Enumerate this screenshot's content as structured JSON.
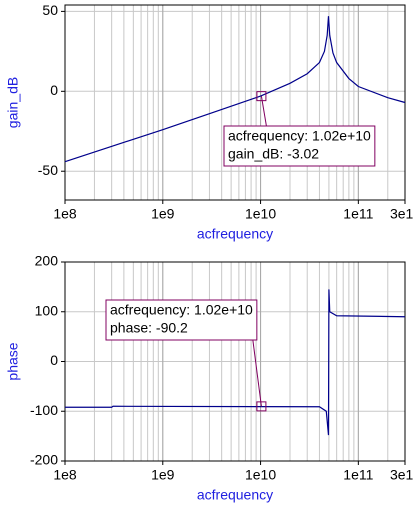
{
  "chart_data": [
    {
      "type": "line",
      "xlabel": "acfrequency",
      "ylabel": "gain_dB",
      "log_x": true,
      "grid": true,
      "x": [
        100000000,
        1000000000,
        3000000000,
        10000000000,
        20000000000,
        30000000000,
        40000000000,
        45000000000,
        48000000000,
        49500000000,
        51000000000,
        55000000000,
        60000000000,
        80000000000,
        100000000000,
        200000000000,
        300000000000
      ],
      "values": [
        -44,
        -24,
        -14,
        -3,
        5,
        11,
        18,
        25,
        35,
        47,
        35,
        24,
        18,
        8,
        3,
        -4,
        -7
      ],
      "color": "#00008b",
      "xlim": [
        100000000,
        300000000000
      ],
      "xticks": [
        {
          "value": 100000000,
          "label": "1e8"
        },
        {
          "value": 1000000000,
          "label": "1e9"
        },
        {
          "value": 10000000000,
          "label": "1e10"
        },
        {
          "value": 100000000000,
          "label": "1e11"
        },
        {
          "value": 300000000000,
          "label": "3e11"
        }
      ],
      "ylim": [
        -68,
        54
      ],
      "yticks": [
        -50,
        0,
        50
      ],
      "annotation": {
        "x": 10200000000,
        "y": -3.02,
        "lines": [
          "acfrequency: 1.02e+10",
          "gain_dB: -3.02"
        ]
      }
    },
    {
      "type": "line",
      "xlabel": "acfrequency",
      "ylabel": "phase",
      "log_x": true,
      "grid": true,
      "x": [
        100000000,
        300000000,
        310000000,
        40000000000,
        47000000000,
        49500000000,
        50000000000,
        51000000000,
        60000000000,
        300000000000
      ],
      "values": [
        -92,
        -92,
        -90,
        -91,
        -100,
        -148,
        145,
        100,
        92,
        90
      ],
      "color": "#00008b",
      "xlim": [
        100000000,
        300000000000
      ],
      "xticks": [
        {
          "value": 100000000,
          "label": "1e8"
        },
        {
          "value": 1000000000,
          "label": "1e9"
        },
        {
          "value": 10000000000,
          "label": "1e10"
        },
        {
          "value": 100000000000,
          "label": "1e11"
        },
        {
          "value": 300000000000,
          "label": "3e11"
        }
      ],
      "ylim": [
        -200,
        200
      ],
      "yticks": [
        -200,
        -100,
        0,
        100,
        200
      ],
      "annotation": {
        "x": 10200000000,
        "y": -90.2,
        "lines": [
          "acfrequency: 1.02e+10",
          "phase: -90.2"
        ]
      }
    }
  ]
}
